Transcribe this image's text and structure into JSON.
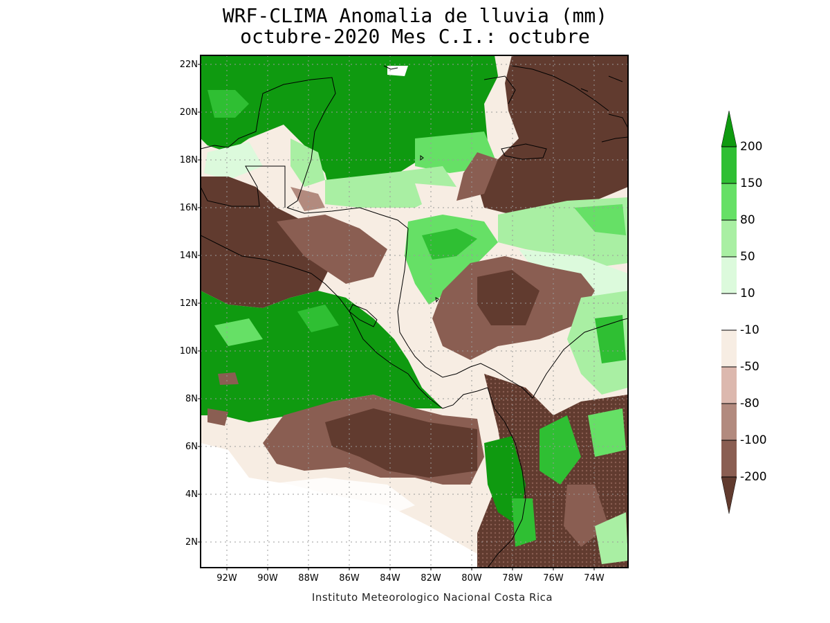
{
  "title_line1": "WRF-CLIMA Anomalia de lluvia (mm)",
  "title_line2": "octubre-2020 Mes C.I.: octubre",
  "credit": "Instituto Meteorologico Nacional Costa Rica",
  "lat_labels": [
    "22N",
    "20N",
    "18N",
    "16N",
    "14N",
    "12N",
    "10N",
    "8N",
    "6N",
    "4N",
    "2N"
  ],
  "lon_labels": [
    "92W",
    "90W",
    "88W",
    "86W",
    "84W",
    "82W",
    "80W",
    "78W",
    "76W",
    "74W"
  ],
  "colorbar": {
    "labels": [
      "200",
      "150",
      "80",
      "50",
      "10",
      "-10",
      "-50",
      "-80",
      "-100",
      "-200"
    ],
    "colors": {
      "gt200": "#0f9a10",
      "150_200": "#2fbf33",
      "80_150": "#66e066",
      "50_80": "#a9efa3",
      "10_50": "#dcfadc",
      "m10_10": "#ffffff",
      "m50_m10": "#f7ede3",
      "m80_m50": "#dcb8ae",
      "m100_m80": "#b28a7e",
      "m200_m100": "#8a5e52",
      "lt_m200": "#613b2f"
    }
  }
}
